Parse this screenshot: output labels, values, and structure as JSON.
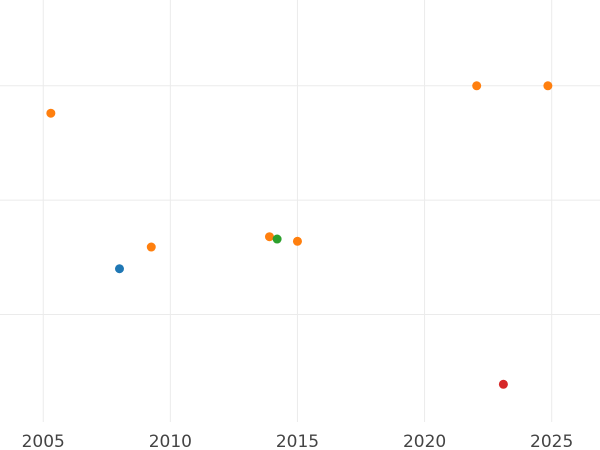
{
  "chart_data": {
    "type": "scatter",
    "title": "",
    "xlabel": "",
    "ylabel": "",
    "xlim": [
      2003.3,
      2026.9
    ],
    "ylim": [
      0.06,
      3.75
    ],
    "x_ticks": [
      2005,
      2010,
      2015,
      2020,
      2025
    ],
    "x_tick_labels": [
      "2005",
      "2010",
      "2015",
      "2020",
      "2025"
    ],
    "y_gridlines": [
      1,
      2,
      3
    ],
    "y_tick_labels_shown": false,
    "grid": true,
    "legend": "none",
    "points": [
      {
        "x": 2005.3,
        "y": 2.76,
        "color": "#ff7f0e"
      },
      {
        "x": 2008.0,
        "y": 1.4,
        "color": "#1f77b4"
      },
      {
        "x": 2009.25,
        "y": 1.59,
        "color": "#ff7f0e"
      },
      {
        "x": 2013.9,
        "y": 1.68,
        "color": "#ff7f0e"
      },
      {
        "x": 2014.2,
        "y": 1.66,
        "color": "#2ca02c"
      },
      {
        "x": 2015.0,
        "y": 1.64,
        "color": "#ff7f0e"
      },
      {
        "x": 2022.05,
        "y": 3.0,
        "color": "#ff7f0e"
      },
      {
        "x": 2024.85,
        "y": 3.0,
        "color": "#ff7f0e"
      },
      {
        "x": 2023.1,
        "y": 0.39,
        "color": "#d62728"
      }
    ]
  }
}
